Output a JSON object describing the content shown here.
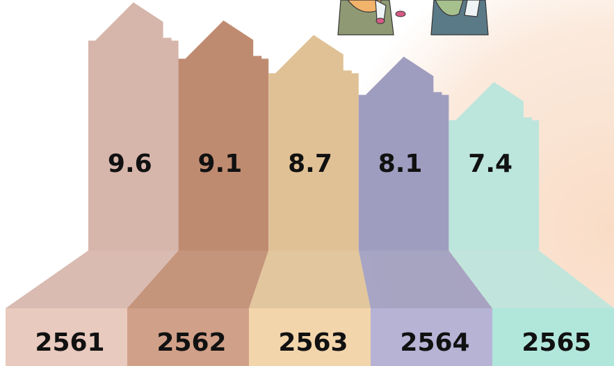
{
  "chart_data": {
    "type": "bar",
    "categories": [
      "2561",
      "2562",
      "2563",
      "2564",
      "2565"
    ],
    "values": [
      9.6,
      9.1,
      8.7,
      8.1,
      7.4
    ],
    "colors": [
      "#d6b5aa",
      "#bf8b70",
      "#e0c195",
      "#9f9dbf",
      "#bce5dc"
    ],
    "base_colors": [
      "#e9cabe",
      "#d1a088",
      "#f3d5ac",
      "#b6b3d5",
      "#b1e6db"
    ]
  }
}
